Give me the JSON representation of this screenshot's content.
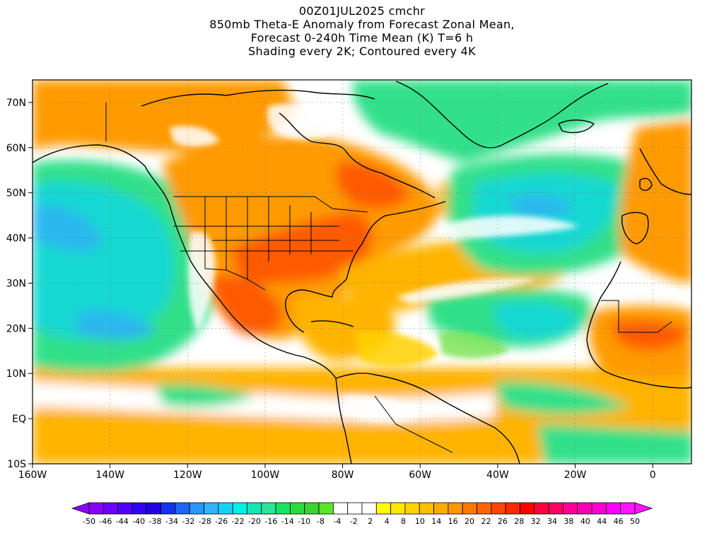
{
  "title": {
    "lines": [
      "00Z01JUL2025 cmchr",
      "850mb Theta-E Anomaly from Forecast Zonal Mean,",
      "Forecast 0-240h Time Mean (K) T=6 h",
      "Shading every 2K; Contoured every 4K"
    ]
  },
  "map": {
    "lon_range": [
      -160,
      10
    ],
    "lat_range": [
      -10,
      75
    ],
    "lon_ticks": [
      {
        "value": -160,
        "label": "160W"
      },
      {
        "value": -140,
        "label": "140W"
      },
      {
        "value": -120,
        "label": "120W"
      },
      {
        "value": -100,
        "label": "100W"
      },
      {
        "value": -80,
        "label": "80W"
      },
      {
        "value": -60,
        "label": "60W"
      },
      {
        "value": -40,
        "label": "40W"
      },
      {
        "value": -20,
        "label": "20W"
      },
      {
        "value": 0,
        "label": "0"
      }
    ],
    "lat_ticks": [
      {
        "value": 70,
        "label": "70N"
      },
      {
        "value": 60,
        "label": "60N"
      },
      {
        "value": 50,
        "label": "50N"
      },
      {
        "value": 40,
        "label": "40N"
      },
      {
        "value": 30,
        "label": "30N"
      },
      {
        "value": 20,
        "label": "20N"
      },
      {
        "value": 10,
        "label": "10N"
      },
      {
        "value": 0,
        "label": "EQ"
      },
      {
        "value": -10,
        "label": "10S"
      }
    ],
    "colors": {
      "strong_positive": "#ff5a00",
      "positive": "#ff9a00",
      "weak_positive": "#ffd200",
      "slight_positive": "#fff03c",
      "near_zero": "#ffffff",
      "slight_negative": "#7fe45a",
      "negative": "#33e08a",
      "strong_negative": "#15d8d2",
      "very_negative": "#2bb8ee",
      "coast": "#000000"
    }
  },
  "colorbar": {
    "colors": [
      "#8a00ff",
      "#6e00ff",
      "#5000ff",
      "#3200f0",
      "#2200e6",
      "#1432f0",
      "#1e64f5",
      "#2896fa",
      "#32b4fc",
      "#14d2f5",
      "#00f0e6",
      "#14e6b4",
      "#28e696",
      "#14e664",
      "#28dc3c",
      "#3cd232",
      "#5ae628",
      "#ffffff",
      "#ffffff",
      "#ffffff",
      "#ffff00",
      "#ffe600",
      "#ffd200",
      "#ffbe00",
      "#ffaa00",
      "#ff9600",
      "#ff7800",
      "#ff6400",
      "#ff4600",
      "#ff2800",
      "#ff0000",
      "#ff0040",
      "#ff0064",
      "#ff0096",
      "#ff00b4",
      "#ff00d2",
      "#ff00ff",
      "#ff14ff"
    ],
    "labels": [
      "-50",
      "-46",
      "-44",
      "-40",
      "-38",
      "-34",
      "-32",
      "-28",
      "-26",
      "-22",
      "-20",
      "-16",
      "-14",
      "-10",
      "-8",
      "-4",
      "-2",
      "2",
      "4",
      "8",
      "10",
      "14",
      "16",
      "20",
      "22",
      "26",
      "28",
      "32",
      "34",
      "38",
      "40",
      "44",
      "46",
      "50"
    ]
  }
}
